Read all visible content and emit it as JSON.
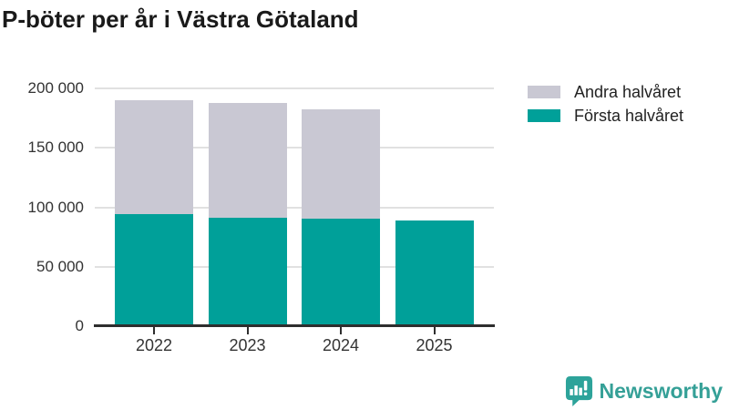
{
  "chart_data": {
    "type": "bar",
    "stacked": true,
    "title": "P-böter per år i Västra Götaland",
    "categories": [
      "2022",
      "2023",
      "2024",
      "2025"
    ],
    "series": [
      {
        "name": "Första halvåret",
        "color": "#00a099",
        "values": [
          94000,
          91300,
          90200,
          88700
        ]
      },
      {
        "name": "Andra halvåret",
        "color": "#c9c8d3",
        "values": [
          96000,
          96100,
          92200,
          0
        ]
      }
    ],
    "xlabel": "",
    "ylabel": "",
    "ylim": [
      0,
      200000
    ],
    "yticks": [
      0,
      50000,
      100000,
      150000,
      200000
    ],
    "ytick_labels": [
      "0",
      "50 000",
      "100 000",
      "150 000",
      "200 000"
    ],
    "grid": true,
    "legend_position": "top-right"
  },
  "legend": {
    "items": [
      {
        "label": "Andra halvåret",
        "color": "#c9c8d3"
      },
      {
        "label": "Första halvåret",
        "color": "#00a099"
      }
    ]
  },
  "branding": {
    "logo_text": "Newsworthy",
    "logo_icon": "bar-chart-speech-bubble-icon",
    "logo_color": "#35a097"
  },
  "colors": {
    "axis": "#2e2e2e",
    "grid": "#e1e1e1",
    "title_text": "#1a1a1a",
    "tick_text": "#333333"
  }
}
